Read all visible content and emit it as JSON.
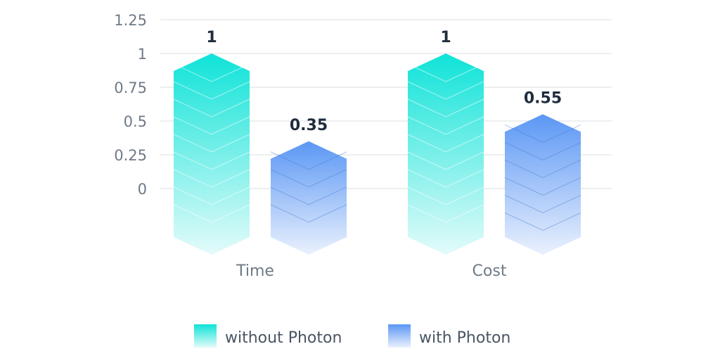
{
  "chart_data": {
    "type": "bar",
    "title": "",
    "xlabel": "",
    "ylabel": "",
    "categories": [
      "Time",
      "Cost"
    ],
    "yticks": [
      "1.25",
      "1",
      "0.75",
      "0.5",
      "0.25",
      "0"
    ],
    "ylim": [
      0,
      1.25
    ],
    "grid": true,
    "legend_position": "bottom-center",
    "series": [
      {
        "name": "without Photon",
        "values": [
          1,
          1
        ],
        "labels": [
          "1",
          "1"
        ],
        "color_top": "#0fe3d8",
        "color_bottom": "#e3fbfa"
      },
      {
        "name": "with Photon",
        "values": [
          0.35,
          0.55
        ],
        "labels": [
          "0.35",
          "0.55"
        ],
        "color_top": "#5b97f4",
        "color_bottom": "#eaf1fd"
      }
    ]
  }
}
